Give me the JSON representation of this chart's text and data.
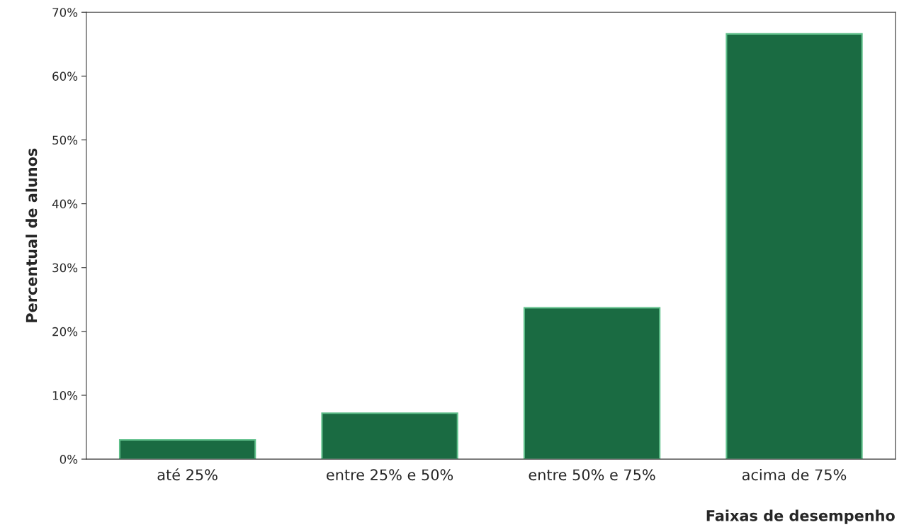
{
  "chart_data": {
    "type": "bar",
    "xlabel": "Faixas de desempenho",
    "ylabel": "Percentual de alunos",
    "categories": [
      "até 25%",
      "entre 25% e 50%",
      "entre 50% e 75%",
      "acima de 75%"
    ],
    "values": [
      3.0,
      7.2,
      23.7,
      66.6
    ],
    "color": "#1a6b42",
    "ylim": [
      0,
      70
    ],
    "yticks": [
      {
        "value": 0,
        "label": "0%"
      },
      {
        "value": 10,
        "label": "10%"
      },
      {
        "value": 20,
        "label": "20%"
      },
      {
        "value": 30,
        "label": "30%"
      },
      {
        "value": 40,
        "label": "40%"
      },
      {
        "value": 50,
        "label": "50%"
      },
      {
        "value": 60,
        "label": "60%"
      },
      {
        "value": 70,
        "label": "70%"
      }
    ],
    "grid": false
  }
}
